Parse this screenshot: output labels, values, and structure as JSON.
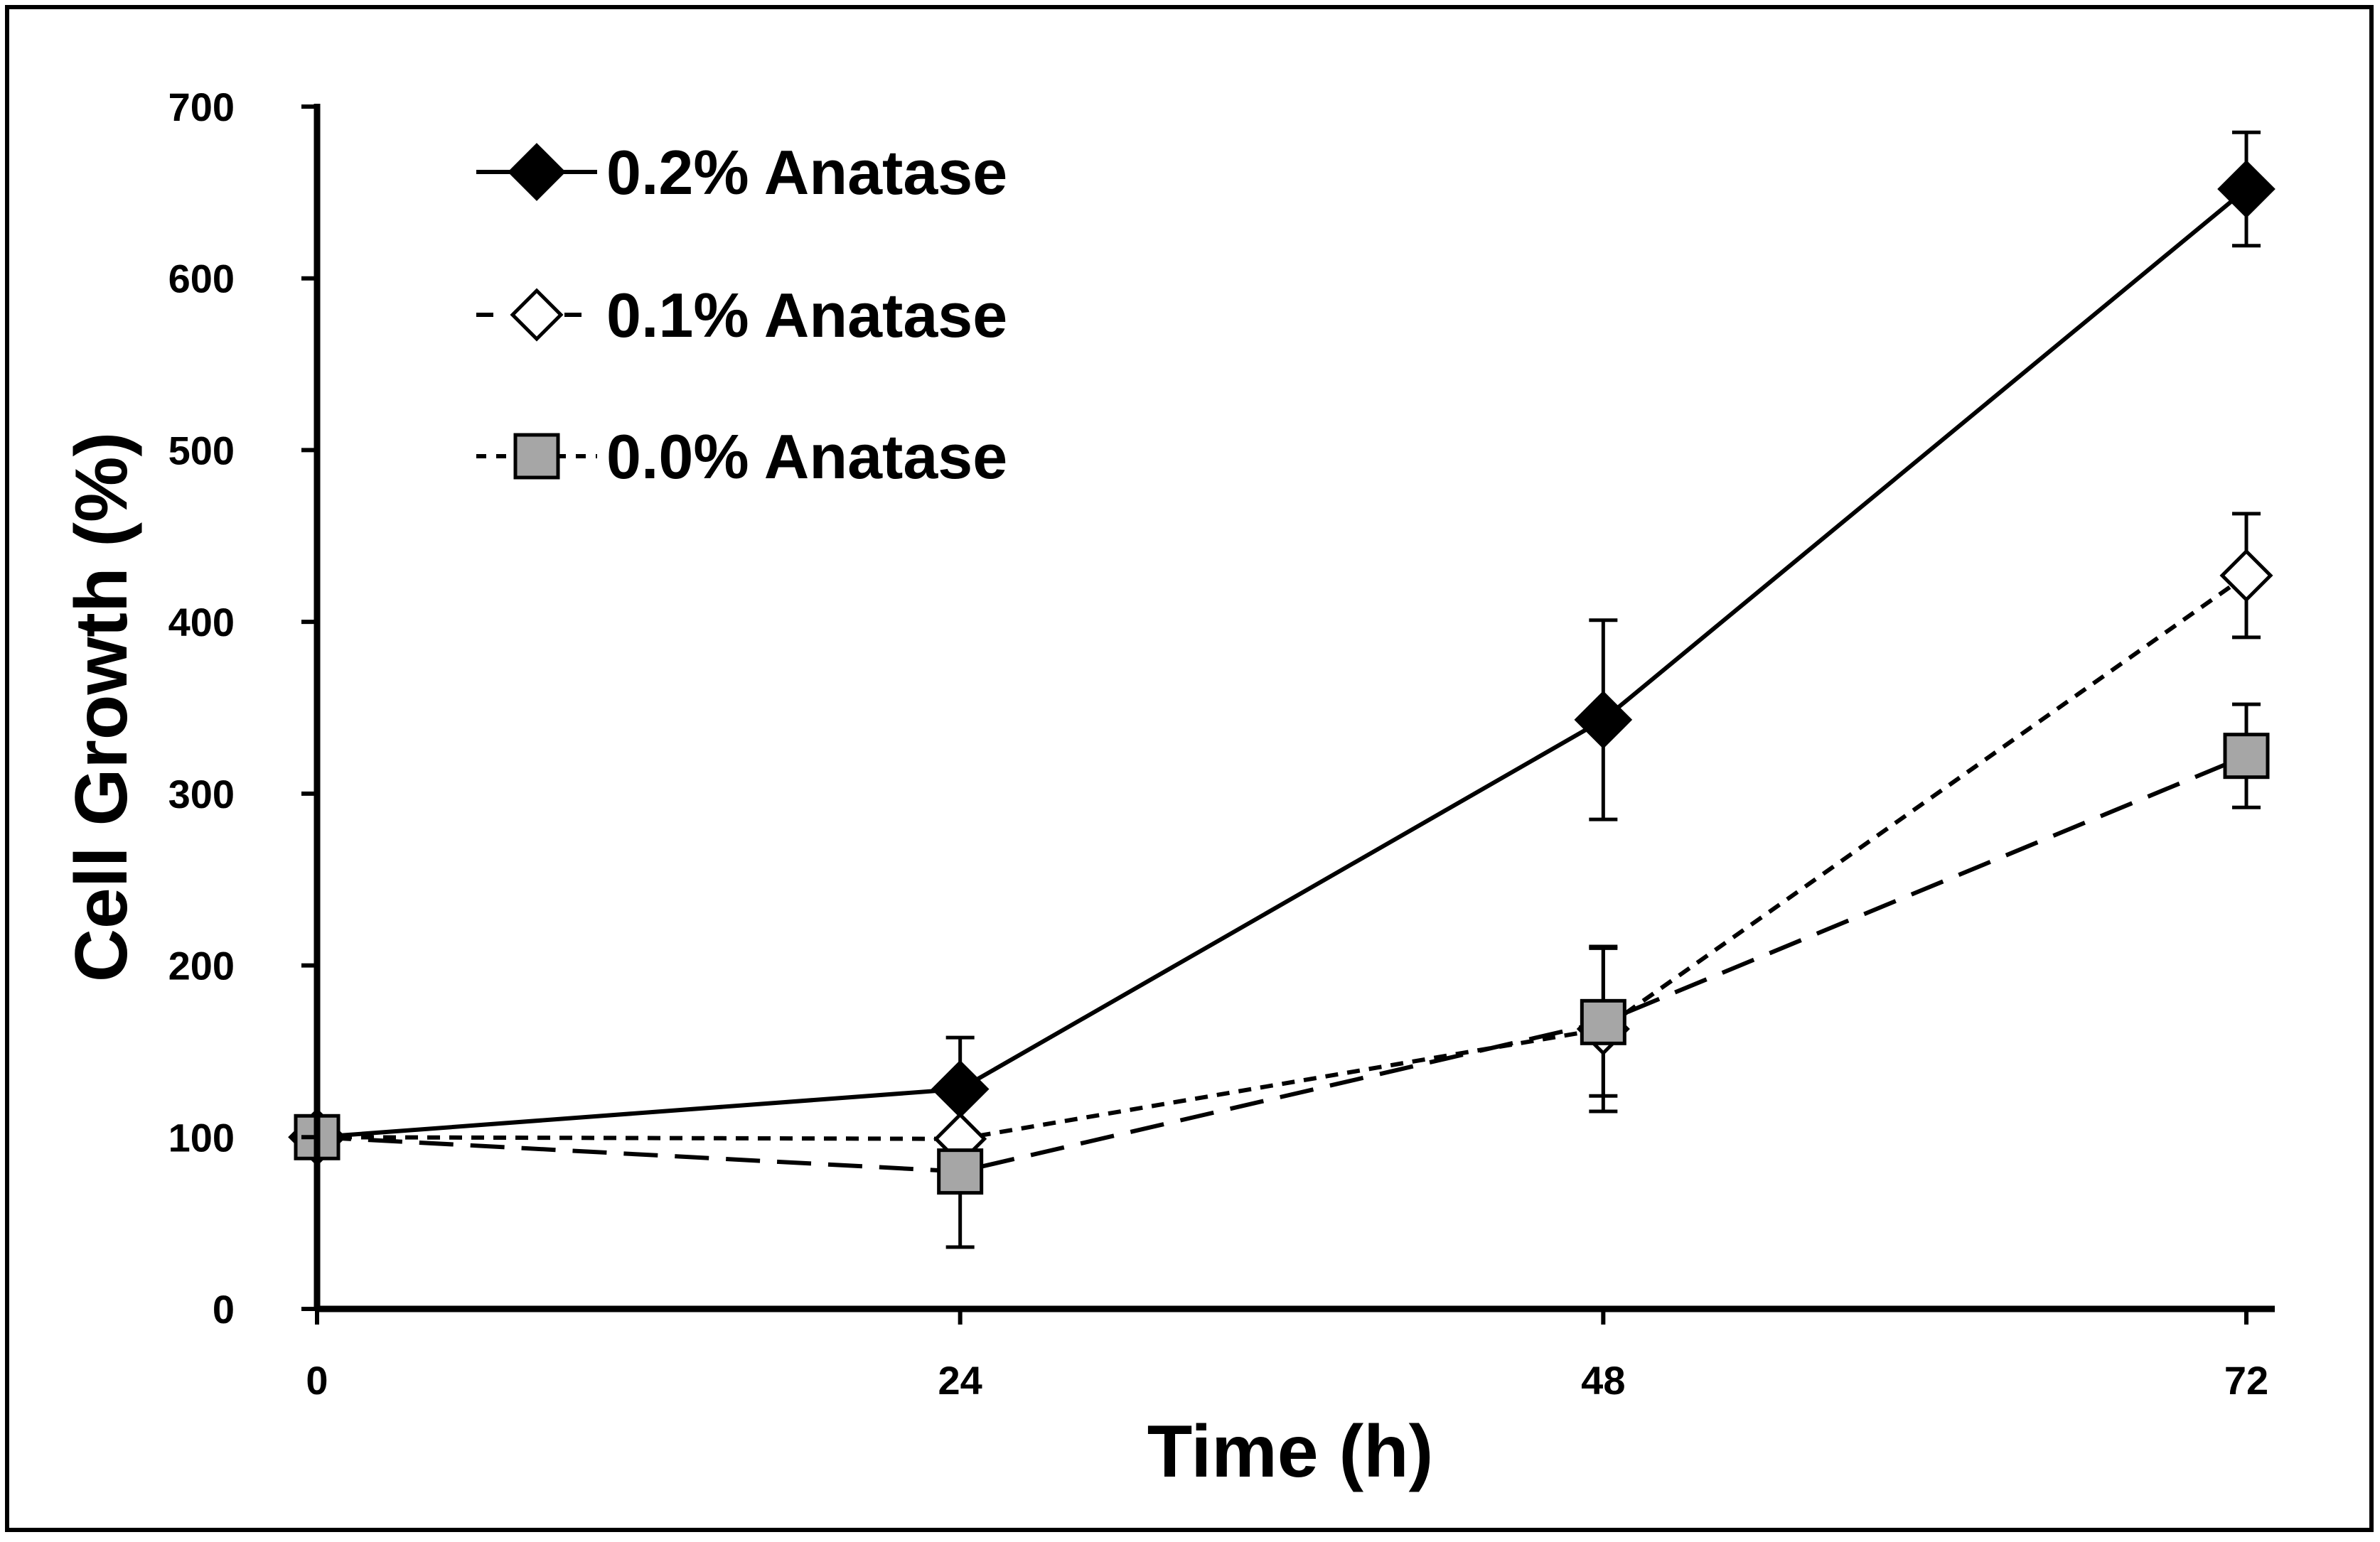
{
  "chart_data": {
    "type": "line",
    "title": "",
    "xlabel": "Time (h)",
    "ylabel": "Cell Growth (%)",
    "x": [
      0,
      24,
      48,
      72
    ],
    "x_tick_labels": [
      "0",
      "24",
      "48",
      "72"
    ],
    "xlim": [
      0,
      72
    ],
    "ylim": [
      0,
      700
    ],
    "y_ticks": [
      0,
      100,
      200,
      300,
      400,
      500,
      600,
      700
    ],
    "y_tick_labels": [
      "0",
      "100",
      "200",
      "300",
      "400",
      "500",
      "600",
      "700"
    ],
    "grid": false,
    "legend_position": "top-left",
    "series": [
      {
        "name": "0.2% Anatase",
        "values": [
          100,
          128,
          343,
          652
        ],
        "errors": [
          0,
          30,
          58,
          33
        ],
        "marker": "filled-diamond",
        "line": "solid",
        "color": "#000000"
      },
      {
        "name": "0.1% Anatase",
        "values": [
          100,
          99,
          163,
          427
        ],
        "errors": [
          0,
          0,
          48,
          36
        ],
        "marker": "open-diamond",
        "line": "short-dash",
        "color": "#000000"
      },
      {
        "name": "0.0% Anatase",
        "values": [
          100,
          80,
          167,
          322
        ],
        "errors": [
          0,
          44,
          43,
          30
        ],
        "marker": "gray-square",
        "line": "long-dash",
        "color": "#a6a6a6"
      }
    ]
  }
}
